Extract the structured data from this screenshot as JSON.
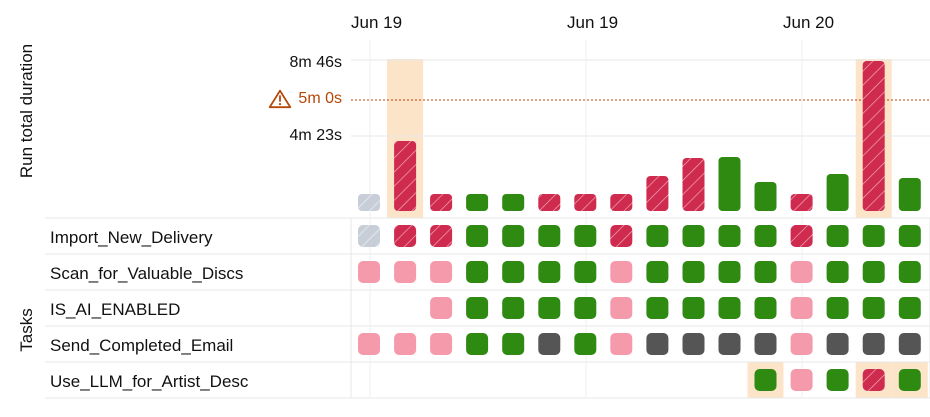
{
  "axis": {
    "run_duration_label": "Run total duration",
    "tasks_label": "Tasks"
  },
  "dates": [
    {
      "label": "Jun 19"
    },
    {
      "label": "Jun 19"
    },
    {
      "label": "Jun 20"
    }
  ],
  "ticks": {
    "top": "8m 46s",
    "threshold": "5m 0s",
    "mid": "4m 23s"
  },
  "threshold_status": "warning",
  "bars": [
    {
      "status": "gray",
      "duration_s": 5
    },
    {
      "status": "failed",
      "duration_s": 245
    },
    {
      "status": "failed",
      "duration_s": 10
    },
    {
      "status": "success",
      "duration_s": 10
    },
    {
      "status": "success",
      "duration_s": 10
    },
    {
      "status": "failed",
      "duration_s": 10
    },
    {
      "status": "failed",
      "duration_s": 10
    },
    {
      "status": "failed",
      "duration_s": 10
    },
    {
      "status": "failed",
      "duration_s": 123
    },
    {
      "status": "failed",
      "duration_s": 186
    },
    {
      "status": "success",
      "duration_s": 190
    },
    {
      "status": "success",
      "duration_s": 100
    },
    {
      "status": "failed",
      "duration_s": 11
    },
    {
      "status": "success",
      "duration_s": 131
    },
    {
      "status": "failed",
      "duration_s": 526
    },
    {
      "status": "success",
      "duration_s": 117
    }
  ],
  "tasks": [
    {
      "name": "Import_New_Delivery",
      "cells": [
        "gray",
        "failed",
        "failed",
        "success",
        "success",
        "success",
        "success",
        "failed",
        "success",
        "success",
        "success",
        "success",
        "failed",
        "success",
        "success",
        "success"
      ]
    },
    {
      "name": "Scan_for_Valuable_Discs",
      "cells": [
        "pending",
        "pending",
        "pending",
        "success",
        "success",
        "success",
        "success",
        "pending",
        "success",
        "success",
        "success",
        "success",
        "pending",
        "success",
        "success",
        "success"
      ]
    },
    {
      "name": "IS_AI_ENABLED",
      "cells": [
        "",
        "",
        "pending",
        "success",
        "success",
        "success",
        "success",
        "pending",
        "success",
        "success",
        "success",
        "success",
        "pending",
        "success",
        "success",
        "success"
      ]
    },
    {
      "name": "Send_Completed_Email",
      "cells": [
        "pending",
        "pending",
        "pending",
        "success",
        "success",
        "skipped",
        "success",
        "pending",
        "skipped",
        "skipped",
        "skipped",
        "skipped",
        "pending",
        "skipped",
        "skipped",
        "skipped"
      ]
    },
    {
      "name": "Use_LLM_for_Artist_Desc",
      "cells": [
        "",
        "",
        "",
        "",
        "",
        "",
        "",
        "",
        "",
        "",
        "",
        "success",
        "pending",
        "success",
        "failed",
        "success"
      ]
    }
  ],
  "highlights": {
    "bar_indices": [
      1,
      14
    ],
    "llm_indices": [
      11,
      14,
      15
    ]
  },
  "colors": {
    "success": "#2f8a12",
    "failed": "#cf2b4f",
    "failed_stripe": "#f3a7b9",
    "pending": "#f59aab",
    "skipped": "#555555",
    "gray": "#c7ced8",
    "gray_stripe": "#eef1f4",
    "highlight": "#fbe4c8",
    "grid": "#e7e7e7",
    "threshold": "#c2410c"
  }
}
